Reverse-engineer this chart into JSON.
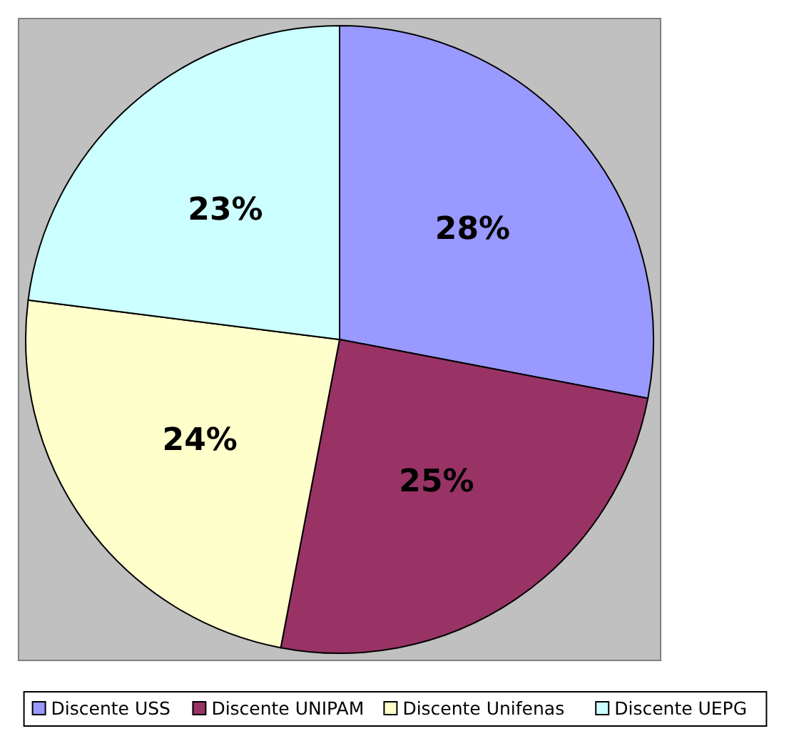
{
  "chart_data": {
    "type": "pie",
    "categories": [
      "Discente USS",
      "Discente UNIPAM",
      "Discente Unifenas",
      "Discente UEPG"
    ],
    "values": [
      28,
      25,
      24,
      23
    ],
    "colors": [
      "#9999ff",
      "#993366",
      "#ffffcc",
      "#ccffff"
    ],
    "value_labels": [
      "28%",
      "25%",
      "24%",
      "23%"
    ],
    "legend": "bottom"
  }
}
